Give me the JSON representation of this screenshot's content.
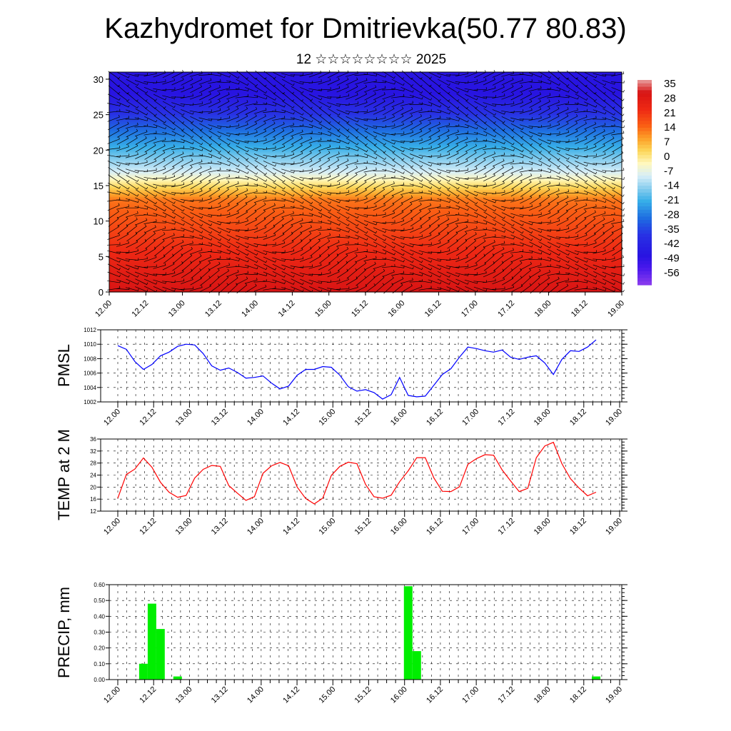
{
  "title": "Kazhydromet for Dmitrievka(50.77 80.83)",
  "subtitle": "12 ☆☆☆☆☆☆☆☆ 2025",
  "colors": {
    "pmsl_line": "#0000ff",
    "temp_line": "#ff0000",
    "precip_bar": "#00ee00",
    "grid": "#000000"
  },
  "chart_data": [
    {
      "type": "heatmap",
      "name": "cross-section",
      "x_ticks": [
        "12.00",
        "12.12",
        "13.00",
        "13.12",
        "14.00",
        "14.12",
        "15.00",
        "15.12",
        "16.00",
        "16.12",
        "17.00",
        "17.12",
        "18.00",
        "18.12",
        "19.00"
      ],
      "y_ticks": [
        "0",
        "5",
        "10",
        "15",
        "20",
        "25",
        "30"
      ],
      "ylim": [
        0,
        31
      ],
      "colorbar_labels": [
        "35",
        "28",
        "21",
        "14",
        "7",
        "0",
        "-7",
        "-14",
        "-21",
        "-28",
        "-35",
        "-42",
        "-49",
        "-56"
      ],
      "colorbar_range": [
        -60,
        38
      ],
      "wind_barbs": true
    },
    {
      "type": "line",
      "ylabel": "PMSL",
      "ylim": [
        1002,
        1012
      ],
      "y_ticks": [
        "1002",
        "1004",
        "1006",
        "1008",
        "1010",
        "1012"
      ],
      "x_ticks": [
        "12.00",
        "12.12",
        "13.00",
        "13.12",
        "14.00",
        "14.12",
        "15.00",
        "15.12",
        "16.00",
        "16.12",
        "17.00",
        "17.12",
        "18.00",
        "18.12",
        "19.00"
      ],
      "values": [
        1009.8,
        1009.3,
        1007.6,
        1006.5,
        1007.2,
        1008.4,
        1008.9,
        1009.7,
        1010.0,
        1009.9,
        1008.7,
        1007.0,
        1006.4,
        1006.7,
        1006.1,
        1005.3,
        1005.4,
        1005.6,
        1004.6,
        1003.8,
        1004.2,
        1005.7,
        1006.5,
        1006.5,
        1006.9,
        1006.8,
        1005.7,
        1004.1,
        1003.5,
        1003.7,
        1003.3,
        1002.4,
        1003.0,
        1005.4,
        1002.9,
        1002.7,
        1002.8,
        1004.3,
        1005.8,
        1006.6,
        1008.2,
        1009.6,
        1009.4,
        1009.1,
        1008.9,
        1009.2,
        1008.2,
        1007.9,
        1008.2,
        1008.4,
        1007.4,
        1005.8,
        1007.9,
        1009.1,
        1009.0,
        1009.6,
        1010.6
      ],
      "grid": true
    },
    {
      "type": "line",
      "ylabel": "TEMP at 2 M",
      "ylim": [
        12,
        36
      ],
      "y_ticks": [
        "12",
        "16",
        "20",
        "24",
        "28",
        "32",
        "36"
      ],
      "x_ticks": [
        "12.00",
        "12.12",
        "13.00",
        "13.12",
        "14.00",
        "14.12",
        "15.00",
        "15.12",
        "16.00",
        "16.12",
        "17.00",
        "17.12",
        "18.00",
        "18.12",
        "19.00"
      ],
      "values": [
        16.3,
        24.2,
        26.0,
        29.7,
        26.6,
        21.6,
        18.3,
        16.6,
        17.2,
        23.0,
        25.9,
        27.2,
        26.9,
        20.5,
        18.0,
        15.6,
        16.8,
        24.6,
        27.1,
        28.2,
        27.1,
        20.0,
        16.2,
        14.4,
        16.3,
        23.9,
        26.9,
        28.3,
        27.8,
        20.9,
        16.8,
        16.3,
        17.3,
        21.8,
        25.4,
        29.8,
        29.8,
        23.1,
        18.6,
        18.5,
        20.1,
        27.6,
        29.5,
        30.8,
        30.6,
        25.7,
        22.0,
        18.5,
        19.6,
        29.8,
        33.7,
        34.9,
        27.8,
        22.8,
        19.7,
        17.1,
        18.3
      ],
      "grid": true
    },
    {
      "type": "bar",
      "ylabel": "PRECIP, mm",
      "ylim": [
        0,
        0.6
      ],
      "y_ticks": [
        "0.00",
        "0.10",
        "0.20",
        "0.30",
        "0.40",
        "0.50",
        "0.60"
      ],
      "x_ticks": [
        "12.00",
        "12.12",
        "13.00",
        "13.12",
        "14.00",
        "14.12",
        "15.00",
        "15.12",
        "16.00",
        "16.12",
        "17.00",
        "17.12",
        "18.00",
        "18.12",
        "19.00"
      ],
      "values": [
        0,
        0,
        0,
        0.1,
        0.48,
        0.32,
        0,
        0.02,
        0,
        0,
        0,
        0,
        0,
        0,
        0,
        0,
        0,
        0,
        0,
        0,
        0,
        0,
        0,
        0,
        0,
        0,
        0,
        0,
        0,
        0,
        0,
        0,
        0,
        0,
        0.59,
        0.18,
        0,
        0,
        0,
        0,
        0,
        0,
        0,
        0,
        0,
        0,
        0,
        0,
        0,
        0,
        0,
        0,
        0,
        0,
        0,
        0,
        0.02
      ],
      "grid": true
    }
  ]
}
